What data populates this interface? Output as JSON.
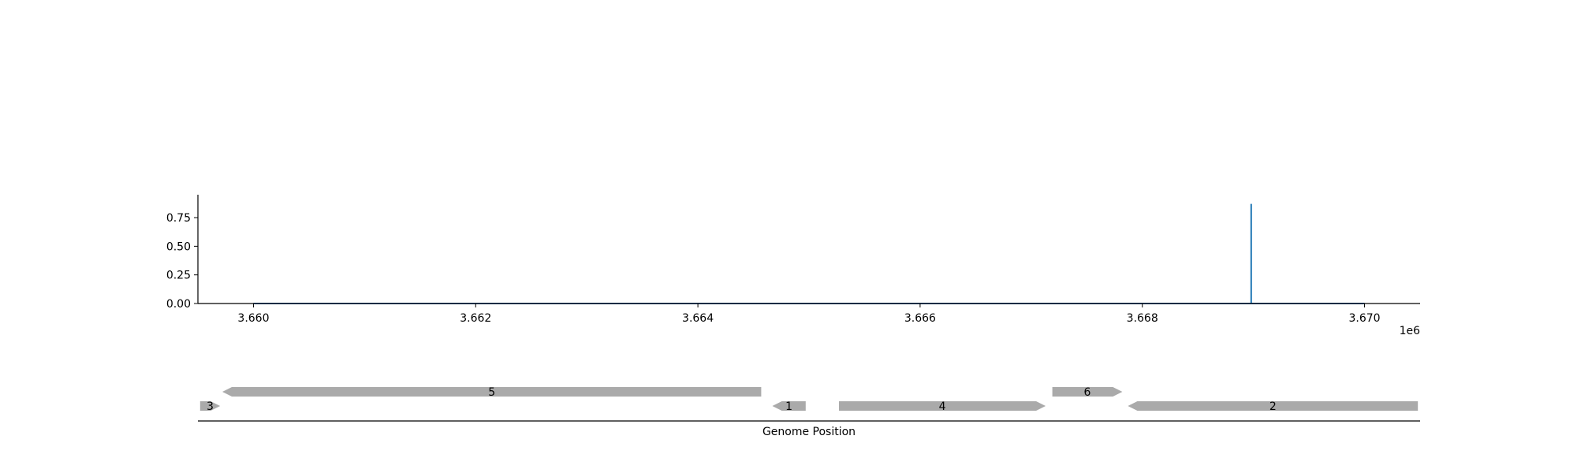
{
  "chart_data": [
    {
      "type": "line",
      "title": "",
      "xlabel": "",
      "ylabel": "",
      "x_offset_label": "1e6",
      "xlim": [
        3659500,
        3670500
      ],
      "ylim": [
        0,
        0.95
      ],
      "x_ticks": [
        3660000,
        3662000,
        3664000,
        3666000,
        3668000,
        3670000
      ],
      "x_tick_labels": [
        "3.660",
        "3.662",
        "3.664",
        "3.666",
        "3.668",
        "3.670"
      ],
      "y_ticks": [
        0,
        0.25,
        0.5,
        0.75
      ],
      "y_tick_labels": [
        "0.00",
        "0.25",
        "0.50",
        "0.75"
      ],
      "grid": false,
      "color": "#1f77b4",
      "series": [
        {
          "x": [
            3660000,
            3668980,
            3668980,
            3668980,
            3670000
          ],
          "y": [
            0,
            0,
            0.87,
            0,
            0
          ]
        }
      ]
    },
    {
      "type": "gene_track",
      "xlabel": "Genome Position",
      "xlim": [
        3659500,
        3670500
      ],
      "color": "#aaaaaa",
      "genes": [
        {
          "label": "3",
          "start": 3659520,
          "end": 3659700,
          "strand": "+",
          "row": 0
        },
        {
          "label": "5",
          "start": 3659720,
          "end": 3664570,
          "strand": "-",
          "row": 1
        },
        {
          "label": "1",
          "start": 3664670,
          "end": 3664970,
          "strand": "-",
          "row": 0
        },
        {
          "label": "4",
          "start": 3665270,
          "end": 3667130,
          "strand": "+",
          "row": 0
        },
        {
          "label": "6",
          "start": 3667190,
          "end": 3667820,
          "strand": "+",
          "row": 1
        },
        {
          "label": "2",
          "start": 3667870,
          "end": 3670480,
          "strand": "-",
          "row": 0
        }
      ]
    }
  ]
}
